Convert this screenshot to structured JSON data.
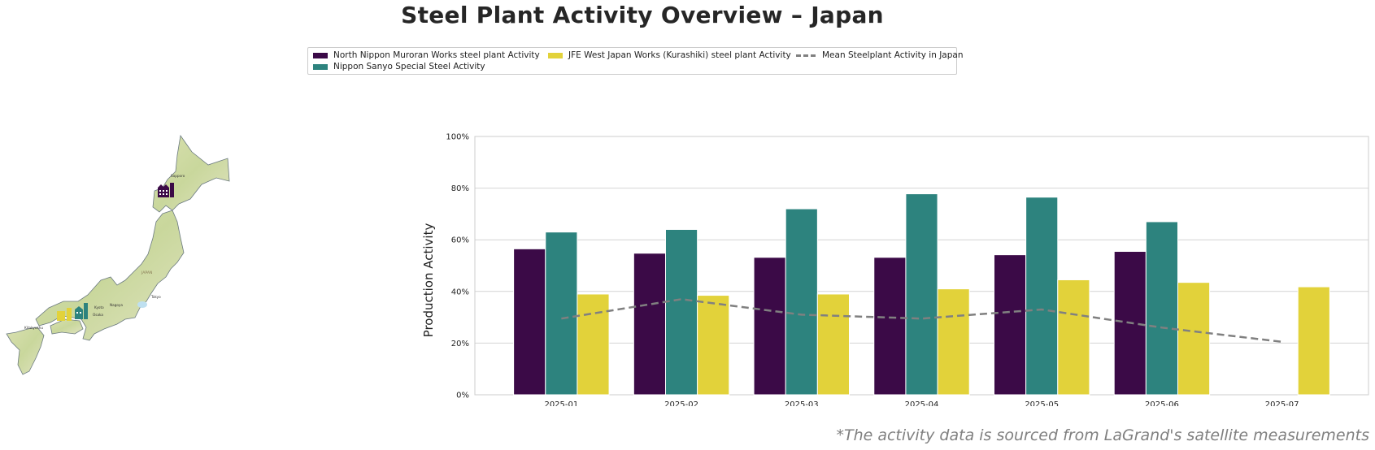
{
  "title": "Steel Plant Activity Overview – Japan",
  "footnote": "*The activity data is sourced from LaGrand's satellite measurements",
  "legend": [
    {
      "label": "North Nippon Muroran Works steel plant Activity",
      "color": "#3b0a47",
      "kind": "bar"
    },
    {
      "label": "Nippon Sanyo Special Steel Activity",
      "color": "#2d837e",
      "kind": "bar"
    },
    {
      "label": "JFE West Japan Works (Kurashiki) steel plant Activity",
      "color": "#e2d23a",
      "kind": "bar"
    },
    {
      "label": "Mean Steelplant Activity in Japan",
      "color": "#808080",
      "kind": "line"
    }
  ],
  "map": {
    "labels": [
      "Sapporo",
      "JAPAN",
      "Tokyo",
      "Osaka",
      "Kyoto",
      "Nagoya",
      "Kitakyushu"
    ]
  },
  "chart_data": {
    "type": "bar",
    "categories": [
      "2025-01",
      "2025-02",
      "2025-03",
      "2025-04",
      "2025-05",
      "2025-06",
      "2025-07"
    ],
    "series": [
      {
        "name": "North Nippon Muroran Works steel plant Activity",
        "color": "#3b0a47",
        "values": [
          56.5,
          54.8,
          53.2,
          53.2,
          54.2,
          55.5,
          null
        ]
      },
      {
        "name": "Nippon Sanyo Special Steel Activity",
        "color": "#2d837e",
        "values": [
          63.0,
          64.0,
          72.0,
          77.8,
          76.5,
          67.0,
          null
        ]
      },
      {
        "name": "JFE West Japan Works (Kurashiki) steel plant Activity",
        "color": "#e2d23a",
        "values": [
          39.0,
          38.5,
          39.0,
          41.0,
          44.5,
          43.5,
          41.8
        ]
      }
    ],
    "line": {
      "name": "Mean Steelplant Activity in Japan",
      "color": "#808080",
      "style": "dashed",
      "values": [
        29.5,
        37.0,
        31.0,
        29.5,
        33.0,
        26.0,
        20.5
      ]
    },
    "xlabel": "",
    "ylabel": "Production Activity",
    "ylim": [
      0,
      100
    ],
    "yticks": [
      "0%",
      "20%",
      "40%",
      "60%",
      "80%",
      "100%"
    ],
    "grid": "horizontal"
  }
}
